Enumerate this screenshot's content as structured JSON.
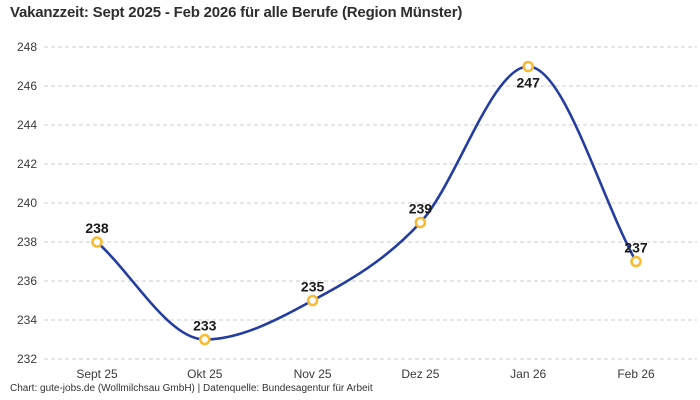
{
  "header": {
    "title": "Vakanzzeit: Sept 2025 - Feb 2026 für alle Berufe (Region Münster)"
  },
  "footer": {
    "attribution": "Chart: gute-jobs.de (Wollmilchsau GmbH) | Datenquelle: Bundesagentur für Arbeit"
  },
  "chart_data": {
    "type": "line",
    "title": "Vakanzzeit: Sept 2025 - Feb 2026 für alle Berufe (Region Münster)",
    "categories": [
      "Sept 25",
      "Okt 25",
      "Nov 25",
      "Dez 25",
      "Jan 26",
      "Feb 26"
    ],
    "series": [
      {
        "name": "Vakanzzeit",
        "values": [
          238,
          233,
          235,
          239,
          247,
          237
        ]
      }
    ],
    "data_labels": [
      "238",
      "233",
      "235",
      "239",
      "247",
      "237"
    ],
    "label_positions": [
      "above",
      "above",
      "above",
      "above",
      "below",
      "above"
    ],
    "yticks": [
      232,
      234,
      236,
      238,
      240,
      242,
      244,
      246,
      248
    ],
    "ylim": [
      232,
      248
    ],
    "xlabel": "",
    "ylabel": "",
    "legend": "none",
    "grid": "horizontal-dashed",
    "curve": "smooth",
    "colors": {
      "line": "#233da0",
      "marker_ring": "#f7bc33",
      "marker_fill": "#ffffff",
      "grid": "#cccccc",
      "axis_text": "#3a3a3a",
      "label_text": "#1a1a1a"
    }
  }
}
